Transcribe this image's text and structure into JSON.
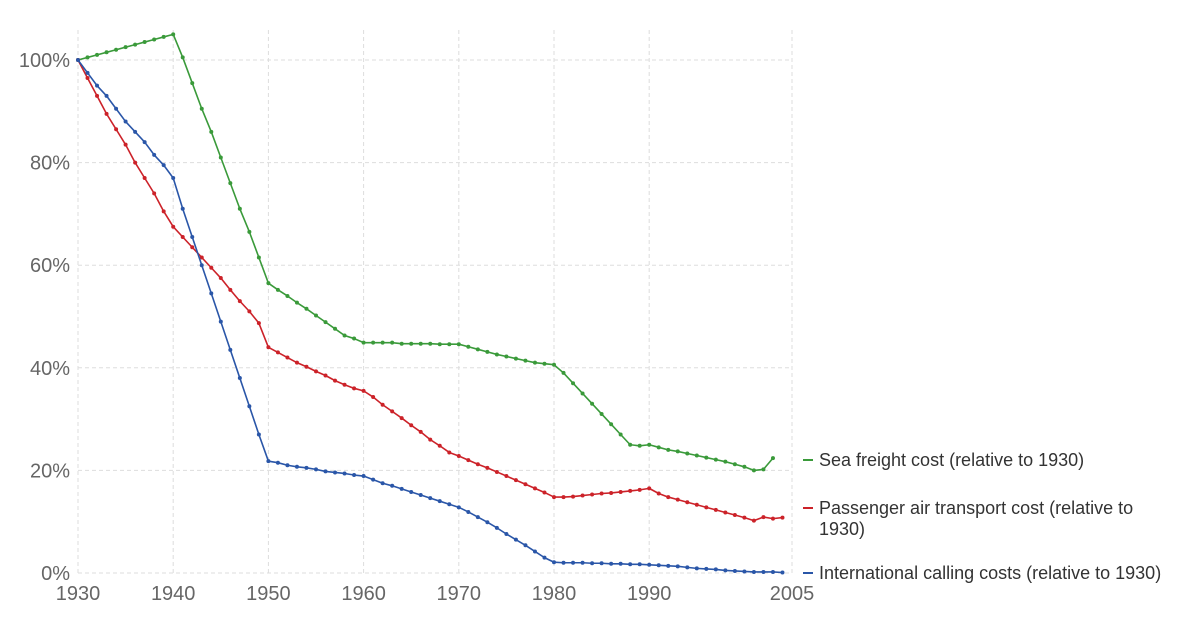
{
  "chart_data": {
    "type": "line",
    "title": "",
    "xlabel": "",
    "ylabel": "",
    "xlim": [
      1930,
      2005
    ],
    "ylim": [
      0,
      100
    ],
    "grid": true,
    "legend_placement": "right, at line ends",
    "x_ticks": [
      1930,
      1940,
      1950,
      1960,
      1970,
      1980,
      1990,
      2005
    ],
    "x_tick_labels": [
      "1930",
      "1940",
      "1950",
      "1960",
      "1970",
      "1980",
      "1990",
      "2005"
    ],
    "y_ticks": [
      0,
      20,
      40,
      60,
      80,
      100
    ],
    "y_tick_labels": [
      "0%",
      "20%",
      "40%",
      "60%",
      "80%",
      "100%"
    ],
    "series": [
      {
        "name": "Sea freight cost (relative to 1930)",
        "legend_lines": [
          "Sea freight cost (relative to 1930)"
        ],
        "color": "#3a9a3a",
        "x": [
          1930,
          1931,
          1932,
          1933,
          1934,
          1935,
          1936,
          1937,
          1938,
          1939,
          1940,
          1941,
          1942,
          1943,
          1944,
          1945,
          1946,
          1947,
          1948,
          1949,
          1950,
          1951,
          1952,
          1953,
          1954,
          1955,
          1956,
          1957,
          1958,
          1959,
          1960,
          1961,
          1962,
          1963,
          1964,
          1965,
          1966,
          1967,
          1968,
          1969,
          1970,
          1971,
          1972,
          1973,
          1974,
          1975,
          1976,
          1977,
          1978,
          1979,
          1980,
          1981,
          1982,
          1983,
          1984,
          1985,
          1986,
          1987,
          1988,
          1989,
          1990,
          1991,
          1992,
          1993,
          1994,
          1995,
          1996,
          1997,
          1998,
          1999,
          2000,
          2001,
          2002,
          2003
        ],
        "values": [
          100,
          100.5,
          101,
          101.5,
          102,
          102.5,
          103,
          103.5,
          104,
          104.5,
          105,
          100.5,
          95.5,
          90.5,
          86,
          81,
          76,
          71,
          66.5,
          61.5,
          56.5,
          55.2,
          54,
          52.7,
          51.5,
          50.2,
          48.9,
          47.6,
          46.3,
          45.7,
          44.9,
          44.9,
          44.9,
          44.9,
          44.7,
          44.7,
          44.7,
          44.7,
          44.6,
          44.6,
          44.6,
          44.1,
          43.6,
          43.1,
          42.6,
          42.2,
          41.8,
          41.4,
          41,
          40.8,
          40.6,
          39,
          37,
          35,
          33,
          31,
          29,
          27,
          25,
          24.8,
          25,
          24.5,
          24,
          23.7,
          23.3,
          22.9,
          22.5,
          22.1,
          21.7,
          21.2,
          20.7,
          20,
          20.2,
          22.4
        ]
      },
      {
        "name": "Passenger air transport cost (relative to 1930)",
        "legend_lines": [
          "Passenger air transport cost (relative to",
          "1930)"
        ],
        "color": "#cc2229",
        "x": [
          1930,
          1931,
          1932,
          1933,
          1934,
          1935,
          1936,
          1937,
          1938,
          1939,
          1940,
          1941,
          1942,
          1943,
          1944,
          1945,
          1946,
          1947,
          1948,
          1949,
          1950,
          1951,
          1952,
          1953,
          1954,
          1955,
          1956,
          1957,
          1958,
          1959,
          1960,
          1961,
          1962,
          1963,
          1964,
          1965,
          1966,
          1967,
          1968,
          1969,
          1970,
          1971,
          1972,
          1973,
          1974,
          1975,
          1976,
          1977,
          1978,
          1979,
          1980,
          1981,
          1982,
          1983,
          1984,
          1985,
          1986,
          1987,
          1988,
          1989,
          1990,
          1991,
          1992,
          1993,
          1994,
          1995,
          1996,
          1997,
          1998,
          1999,
          2000,
          2001,
          2002,
          2003,
          2004
        ],
        "values": [
          100,
          96.5,
          93,
          89.5,
          86.5,
          83.5,
          80,
          77,
          74,
          70.5,
          67.5,
          65.5,
          63.5,
          61.5,
          59.5,
          57.5,
          55.2,
          53,
          51,
          48.7,
          44,
          43,
          42,
          41,
          40.2,
          39.3,
          38.5,
          37.5,
          36.7,
          36,
          35.5,
          34.3,
          32.8,
          31.5,
          30.2,
          28.8,
          27.5,
          26,
          24.8,
          23.5,
          22.8,
          22,
          21.2,
          20.5,
          19.7,
          18.9,
          18.1,
          17.3,
          16.5,
          15.7,
          14.8,
          14.8,
          14.9,
          15.1,
          15.3,
          15.5,
          15.6,
          15.8,
          16,
          16.2,
          16.5,
          15.5,
          14.8,
          14.3,
          13.8,
          13.3,
          12.8,
          12.3,
          11.8,
          11.3,
          10.8,
          10.2,
          10.9,
          10.6,
          10.8
        ]
      },
      {
        "name": "International calling costs (relative to 1930)",
        "legend_lines": [
          "International calling costs (relative to 1930)"
        ],
        "color": "#2a56a8",
        "x": [
          1930,
          1931,
          1932,
          1933,
          1934,
          1935,
          1936,
          1937,
          1938,
          1939,
          1940,
          1941,
          1942,
          1943,
          1944,
          1945,
          1946,
          1947,
          1948,
          1949,
          1950,
          1951,
          1952,
          1953,
          1954,
          1955,
          1956,
          1957,
          1958,
          1959,
          1960,
          1961,
          1962,
          1963,
          1964,
          1965,
          1966,
          1967,
          1968,
          1969,
          1970,
          1971,
          1972,
          1973,
          1974,
          1975,
          1976,
          1977,
          1978,
          1979,
          1980,
          1981,
          1982,
          1983,
          1984,
          1985,
          1986,
          1987,
          1988,
          1989,
          1990,
          1991,
          1992,
          1993,
          1994,
          1995,
          1996,
          1997,
          1998,
          1999,
          2000,
          2001,
          2002,
          2003,
          2004
        ],
        "values": [
          100,
          97.5,
          95,
          93,
          90.5,
          88,
          86,
          84,
          81.5,
          79.5,
          77,
          71,
          65.5,
          60,
          54.5,
          49,
          43.5,
          38,
          32.5,
          27,
          21.8,
          21.5,
          21,
          20.7,
          20.5,
          20.2,
          19.8,
          19.6,
          19.4,
          19.1,
          18.9,
          18.2,
          17.5,
          17,
          16.4,
          15.8,
          15.2,
          14.6,
          14,
          13.4,
          12.8,
          11.9,
          10.9,
          9.9,
          8.8,
          7.6,
          6.5,
          5.4,
          4.2,
          3,
          2.1,
          2,
          2,
          2,
          1.9,
          1.9,
          1.8,
          1.8,
          1.7,
          1.7,
          1.6,
          1.5,
          1.4,
          1.3,
          1.1,
          0.9,
          0.8,
          0.7,
          0.5,
          0.4,
          0.3,
          0.2,
          0.2,
          0.2,
          0.1
        ]
      }
    ]
  }
}
